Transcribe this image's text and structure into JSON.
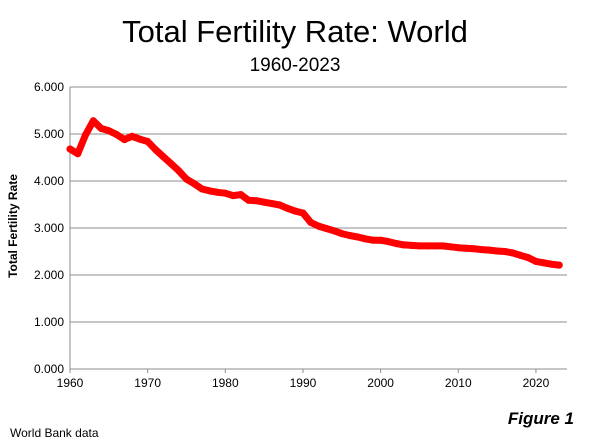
{
  "chart_data": {
    "type": "line",
    "title": "Total Fertility Rate: World",
    "subtitle": "1960-2023",
    "xlabel": "",
    "ylabel": "Total Fertility Rate",
    "xlim": [
      1960,
      2024
    ],
    "ylim": [
      0,
      6
    ],
    "x_ticks": [
      1960,
      1970,
      1980,
      1990,
      2000,
      2010,
      2020
    ],
    "y_ticks": [
      "0.000",
      "1.000",
      "2.000",
      "3.000",
      "4.000",
      "5.000",
      "6.000"
    ],
    "grid": "horizontal",
    "series": [
      {
        "color": "#ff0000",
        "x": [
          1960,
          1961,
          1962,
          1963,
          1964,
          1965,
          1966,
          1967,
          1968,
          1969,
          1970,
          1971,
          1972,
          1973,
          1974,
          1975,
          1976,
          1977,
          1978,
          1979,
          1980,
          1981,
          1982,
          1983,
          1984,
          1985,
          1986,
          1987,
          1988,
          1989,
          1990,
          1991,
          1992,
          1993,
          1994,
          1995,
          1996,
          1997,
          1998,
          1999,
          2000,
          2001,
          2002,
          2003,
          2004,
          2005,
          2006,
          2007,
          2008,
          2009,
          2010,
          2011,
          2012,
          2013,
          2014,
          2015,
          2016,
          2017,
          2018,
          2019,
          2020,
          2021,
          2022,
          2023
        ],
        "y": [
          4.68,
          4.58,
          4.98,
          5.28,
          5.12,
          5.07,
          4.99,
          4.88,
          4.95,
          4.89,
          4.84,
          4.67,
          4.52,
          4.37,
          4.22,
          4.04,
          3.94,
          3.83,
          3.79,
          3.76,
          3.74,
          3.69,
          3.71,
          3.59,
          3.58,
          3.55,
          3.52,
          3.49,
          3.42,
          3.36,
          3.32,
          3.12,
          3.04,
          2.99,
          2.94,
          2.88,
          2.84,
          2.81,
          2.77,
          2.74,
          2.74,
          2.71,
          2.67,
          2.64,
          2.63,
          2.62,
          2.62,
          2.62,
          2.62,
          2.6,
          2.58,
          2.57,
          2.56,
          2.54,
          2.53,
          2.51,
          2.5,
          2.47,
          2.42,
          2.37,
          2.29,
          2.26,
          2.23,
          2.21
        ]
      }
    ]
  },
  "footer": {
    "source": "World Bank data",
    "figure_label": "Figure 1"
  }
}
